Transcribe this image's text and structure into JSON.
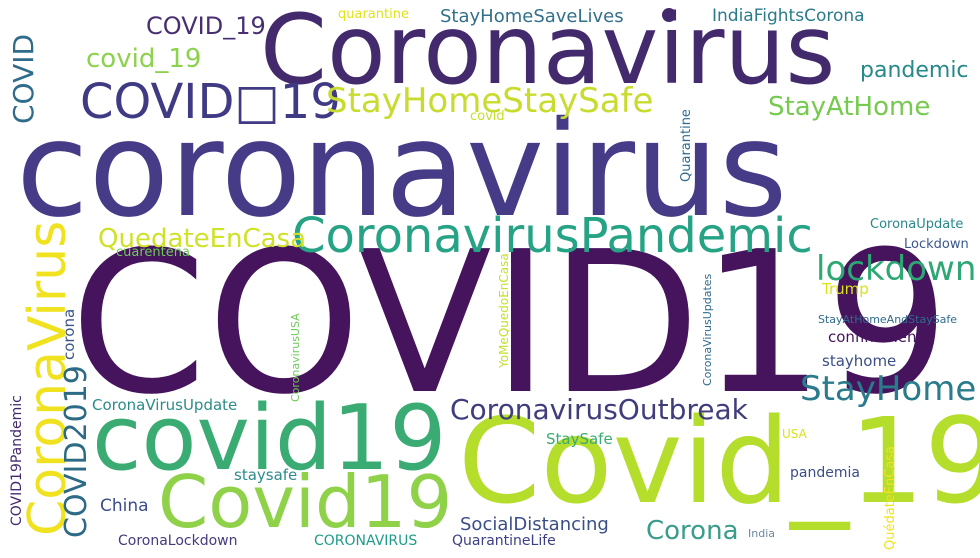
{
  "cloud": {
    "words": {
      "covid19_big": {
        "text": "COVID19",
        "color": "#46145d"
      },
      "coronavirus_big": {
        "text": "coronavirus",
        "color": "#453b87"
      },
      "Coronavirus": {
        "text": "Coronavirus",
        "color": "#432a6d"
      },
      "Covid_19": {
        "text": "Covid_19",
        "color": "#b5dd2b"
      },
      "covid19": {
        "text": "covid19",
        "color": "#3aab72"
      },
      "Covid19": {
        "text": "Covid19",
        "color": "#8fd24a"
      },
      "CoronaVirus": {
        "text": "CoronaVirus",
        "color": "#f0e21e"
      },
      "CoronavirusPandemic": {
        "text": "CoronavirusPandemic",
        "color": "#26a385"
      },
      "COVID_19_box": {
        "text": "COVID□19",
        "color": "#3f3a83"
      },
      "StayHomeStaySafe": {
        "text": "StayHomeStaySafe",
        "color": "#c8dc2f"
      },
      "StayHome": {
        "text": "StayHome",
        "color": "#2a7b8c"
      },
      "CoronavirusOutbreak": {
        "text": "CoronavirusOutbreak",
        "color": "#3f3d7c"
      },
      "lockdown": {
        "text": "lockdown",
        "color": "#2da773"
      },
      "COVID2019": {
        "text": "COVID2019",
        "color": "#2c6a86"
      },
      "QuedateEnCasa": {
        "text": "QuedateEnCasa",
        "color": "#cfe128"
      },
      "COVID_19": {
        "text": "COVID_19",
        "color": "#472f72"
      },
      "covid_19": {
        "text": "covid_19",
        "color": "#8cd24c"
      },
      "COVID": {
        "text": "COVID",
        "color": "#2f6b8b"
      },
      "pandemic": {
        "text": "pandemic",
        "color": "#27888a"
      },
      "StayAtHome": {
        "text": "StayAtHome",
        "color": "#76ca4f"
      },
      "Corona": {
        "text": "Corona",
        "color": "#3a9c8a"
      },
      "SocialDistancing": {
        "text": "SocialDistancing",
        "color": "#3b4e87"
      },
      "StaySafeHomeSaveLives": {
        "text": "StayHomeSaveLives",
        "color": "#33708b"
      },
      "IndiaFightsCorona": {
        "text": "IndiaFightsCorona",
        "color": "#2a7b8c"
      },
      "quarantine": {
        "text": "quarantine",
        "color": "#dfe318"
      },
      "covid": {
        "text": "covid",
        "color": "#c6df2a"
      },
      "Quarantine": {
        "text": "Quarantine",
        "color": "#2e6b8d"
      },
      "COVID19Pandemic": {
        "text": "COVID19Pandemic",
        "color": "#442a6d"
      },
      "corona": {
        "text": "corona",
        "color": "#3b5789"
      },
      "CoronaVirusUpdate": {
        "text": "CoronaVirusUpdate",
        "color": "#2c8c89"
      },
      "StaySafe": {
        "text": "StaySafe",
        "color": "#3aab72"
      },
      "staysafe": {
        "text": "staysafe",
        "color": "#2e8a8c"
      },
      "China": {
        "text": "China",
        "color": "#3c4d8a"
      },
      "CoronaLockdown": {
        "text": "CoronaLockdown",
        "color": "#433b7e"
      },
      "CORONAVIRUS": {
        "text": "CORONAVIRUS",
        "color": "#1f9c89"
      },
      "QuarantineLife": {
        "text": "QuarantineLife",
        "color": "#3b3f83"
      },
      "cuarentena": {
        "text": "cuarentena",
        "color": "#6ecb5a"
      },
      "CoronavirusUSA": {
        "text": "CoronavirusUSA",
        "color": "#6ecb5a"
      },
      "YoMeQuedoEnCasa": {
        "text": "YoMeQuedoEnCasa",
        "color": "#c6df2a"
      },
      "CoronaVirusUpdates": {
        "text": "CoronaVirusUpdates",
        "color": "#2e6b8d"
      },
      "CoronaUpdate": {
        "text": "CoronaUpdate",
        "color": "#27888a"
      },
      "Lockdown": {
        "text": "Lockdown",
        "color": "#3b5789"
      },
      "Trump": {
        "text": "Trump",
        "color": "#d8e219"
      },
      "StayAtHomeAndStaySafe": {
        "text": "StayAtHomeAndStaySafe",
        "color": "#2e6b8d"
      },
      "confinement": {
        "text": "confinement",
        "color": "#46145d"
      },
      "stayhome": {
        "text": "stayhome",
        "color": "#3b4e87"
      },
      "USA": {
        "text": "USA",
        "color": "#d8e219"
      },
      "pandemia": {
        "text": "pandemia",
        "color": "#3b4e87"
      },
      "QuedateEnCasa_accent": {
        "text": "QuédateEnCasa",
        "color": "#f0e21e"
      },
      "India": {
        "text": "India",
        "color": "#6b8aa0"
      }
    }
  }
}
